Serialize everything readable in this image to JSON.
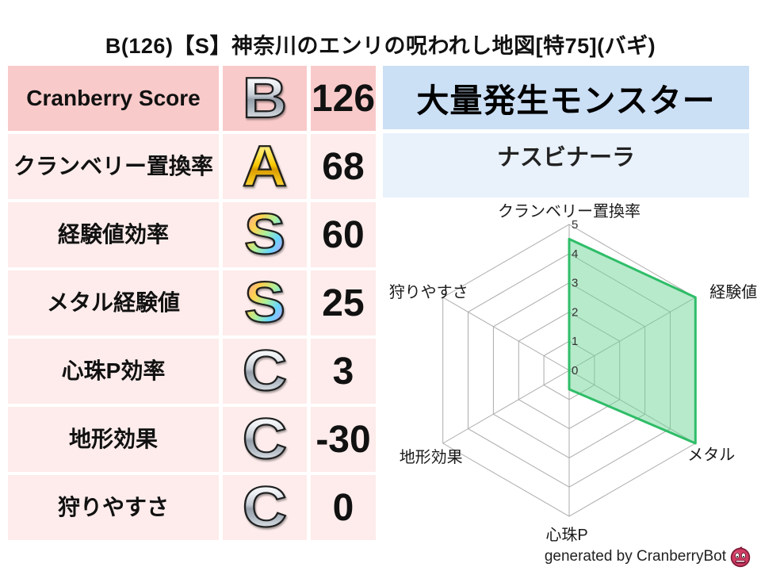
{
  "title": "B(126)【S】神奈川のエンリの呪われし地図[特75](バギ)",
  "score_table": {
    "rows": [
      {
        "label": "Cranberry Score",
        "grade": "B",
        "grade_style": "chrome",
        "value": "126"
      },
      {
        "label": "クランベリー置換率",
        "grade": "A",
        "grade_style": "gold",
        "value": "68"
      },
      {
        "label": "経験値効率",
        "grade": "S",
        "grade_style": "rainbow",
        "value": "60"
      },
      {
        "label": "メタル経験値",
        "grade": "S",
        "grade_style": "rainbow",
        "value": "25"
      },
      {
        "label": "心珠P効率",
        "grade": "C",
        "grade_style": "chrome",
        "value": "3"
      },
      {
        "label": "地形効果",
        "grade": "C",
        "grade_style": "chrome",
        "value": "-30"
      },
      {
        "label": "狩りやすさ",
        "grade": "C",
        "grade_style": "chrome",
        "value": "0"
      }
    ]
  },
  "monster_panel": {
    "header": "大量発生モンスター",
    "monster_name": "ナスビナーラ"
  },
  "chart_data": {
    "type": "radar",
    "categories": [
      "クランベリー置換率",
      "経験値",
      "メタル",
      "心珠P",
      "地形効果",
      "狩りやすさ"
    ],
    "values": [
      4.5,
      5,
      5,
      0.65,
      0,
      0
    ],
    "tick_labels": [
      "0",
      "1",
      "2",
      "3",
      "4",
      "5"
    ],
    "axis_range": [
      0,
      5
    ],
    "grid": true,
    "legend": "none",
    "fill_color": "#6FD598",
    "fill_opacity": 0.5,
    "stroke_color": "#2FBD68",
    "grid_color": "#ababab"
  },
  "footer": {
    "credit": "generated by CranberryBot",
    "icon": "cranberry-icon"
  },
  "colors": {
    "header_pink": "#f9caca",
    "row_pink": "#fdeceb",
    "header_blue": "#cbdff5",
    "row_blue": "#e9f2fb"
  }
}
